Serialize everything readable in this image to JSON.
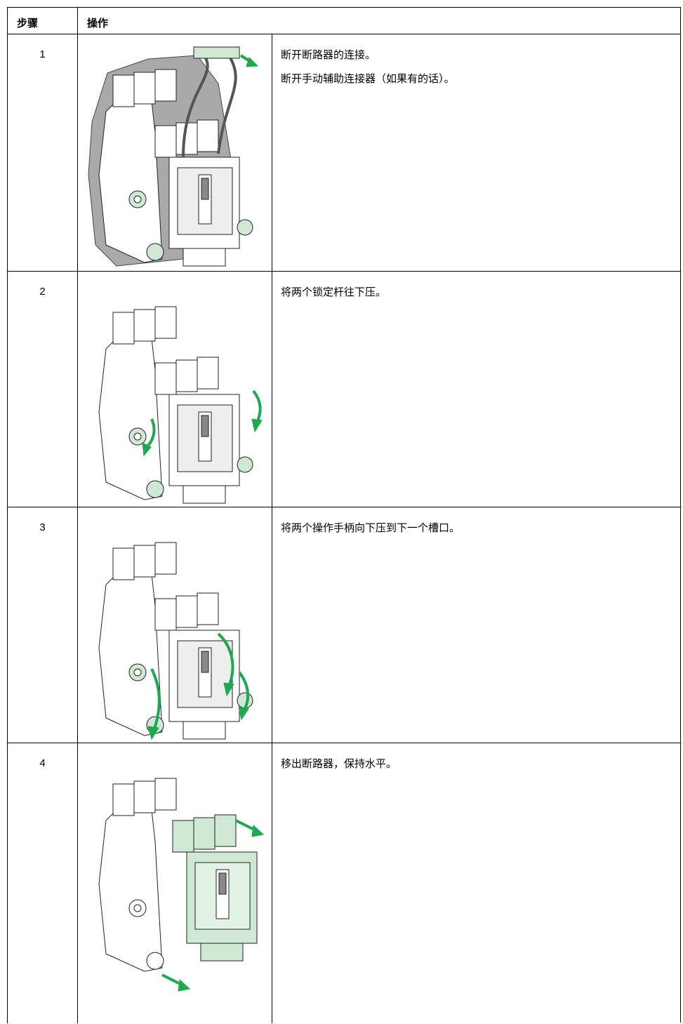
{
  "header": {
    "columns": [
      "步骤",
      "操作"
    ]
  },
  "rows": [
    {
      "step": "1",
      "texts": [
        "断开断路器的连接。",
        "断开手动辅助连接器（如果有的话）。"
      ]
    },
    {
      "step": "2",
      "texts": [
        "将两个锁定杆往下压。"
      ]
    },
    {
      "step": "3",
      "texts": [
        "将两个操作手柄向下压到下一个槽口。"
      ]
    },
    {
      "step": "4",
      "texts": [
        "移出断路器，保持水平。"
      ]
    }
  ]
}
